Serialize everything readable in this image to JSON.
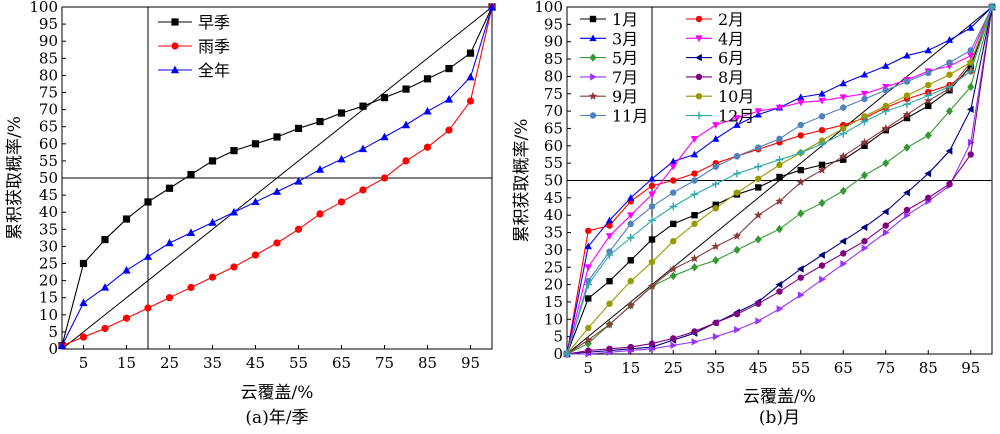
{
  "chart_data": [
    {
      "id": "a",
      "type": "line",
      "caption": "(a)年/季",
      "xlabel": "云覆盖/%",
      "ylabel": "累积获取概率/%",
      "xlim": [
        0,
        100
      ],
      "ylim": [
        0,
        100
      ],
      "xticks": [
        5,
        15,
        25,
        35,
        45,
        55,
        65,
        75,
        85,
        95
      ],
      "yticks": [
        0,
        5,
        10,
        15,
        20,
        25,
        30,
        35,
        40,
        45,
        50,
        55,
        60,
        65,
        70,
        75,
        80,
        85,
        90,
        95,
        100
      ],
      "reference_lines": {
        "diagonal": true,
        "vertical_x": 20,
        "horizontal_y": 50
      },
      "legend": {
        "placement": "top-left",
        "columns": 1
      },
      "series": [
        {
          "name": "早季",
          "color": "#000000",
          "marker": "square",
          "x": [
            0,
            5,
            10,
            15,
            20,
            25,
            30,
            35,
            40,
            45,
            50,
            55,
            60,
            65,
            70,
            75,
            80,
            85,
            90,
            95,
            100
          ],
          "y": [
            1,
            25,
            32,
            38,
            43,
            47,
            51,
            55,
            58,
            60,
            62,
            64.5,
            66.5,
            69,
            71,
            73.5,
            76,
            79,
            82,
            86.5,
            100
          ]
        },
        {
          "name": "雨季",
          "color": "#ff0000",
          "marker": "circle",
          "x": [
            0,
            5,
            10,
            15,
            20,
            25,
            30,
            35,
            40,
            45,
            50,
            55,
            60,
            65,
            70,
            75,
            80,
            85,
            90,
            95,
            100
          ],
          "y": [
            1,
            3.5,
            6,
            9,
            12,
            15,
            18,
            21,
            24,
            27.5,
            31,
            35,
            39.5,
            43,
            46.5,
            50,
            55,
            59,
            64,
            72.5,
            100
          ]
        },
        {
          "name": "全年",
          "color": "#0000ff",
          "marker": "triangle",
          "x": [
            0,
            5,
            10,
            15,
            20,
            25,
            30,
            35,
            40,
            45,
            50,
            55,
            60,
            65,
            70,
            75,
            80,
            85,
            90,
            95,
            100
          ],
          "y": [
            1,
            13.5,
            18,
            23,
            27,
            31,
            34,
            37,
            40,
            43,
            46,
            49,
            52.5,
            55.5,
            58.5,
            62,
            65.5,
            69.5,
            73,
            79.5,
            100
          ]
        }
      ]
    },
    {
      "id": "b",
      "type": "line",
      "caption": "(b)月",
      "xlabel": "云覆盖/%",
      "ylabel": "累积获取概率/%",
      "xlim": [
        0,
        100
      ],
      "ylim": [
        0,
        100
      ],
      "xticks": [
        5,
        15,
        25,
        35,
        45,
        55,
        65,
        75,
        85,
        95
      ],
      "yticks": [
        0,
        5,
        10,
        15,
        20,
        25,
        30,
        35,
        40,
        45,
        50,
        55,
        60,
        65,
        70,
        75,
        80,
        85,
        90,
        95,
        100
      ],
      "reference_lines": {
        "diagonal": true,
        "vertical_x": 20,
        "horizontal_y": 50
      },
      "legend": {
        "placement": "top-left",
        "columns": 2
      },
      "series": [
        {
          "name": "1月",
          "color": "#000000",
          "marker": "square",
          "x": [
            0,
            5,
            10,
            15,
            20,
            25,
            30,
            35,
            40,
            45,
            50,
            55,
            60,
            65,
            70,
            75,
            80,
            85,
            90,
            95,
            100
          ],
          "y": [
            0,
            16,
            21,
            27,
            33,
            37.5,
            40,
            43,
            46,
            48,
            51,
            53,
            54.5,
            56,
            60,
            64.5,
            68,
            71.5,
            76,
            83,
            100
          ]
        },
        {
          "name": "2月",
          "color": "#ff0000",
          "marker": "circle",
          "x": [
            0,
            5,
            10,
            15,
            20,
            25,
            30,
            35,
            40,
            45,
            50,
            55,
            60,
            65,
            70,
            75,
            80,
            85,
            90,
            95,
            100
          ],
          "y": [
            0,
            35.5,
            37,
            44,
            48.5,
            50,
            52,
            55,
            57,
            59,
            61,
            63,
            64.5,
            66,
            68,
            71,
            73.5,
            75.5,
            77.5,
            81.5,
            100
          ]
        },
        {
          "name": "3月",
          "color": "#0000ff",
          "marker": "triangle",
          "x": [
            0,
            5,
            10,
            15,
            20,
            25,
            30,
            35,
            40,
            45,
            50,
            55,
            60,
            65,
            70,
            75,
            80,
            85,
            90,
            95,
            100
          ],
          "y": [
            0,
            31,
            38.5,
            45,
            50.5,
            55.5,
            57.5,
            62,
            66,
            69,
            71,
            74,
            75,
            78,
            80.5,
            83,
            86,
            87.5,
            90.5,
            94,
            100
          ]
        },
        {
          "name": "4月",
          "color": "#ff00ff",
          "marker": "triangle-down",
          "x": [
            0,
            5,
            10,
            15,
            20,
            25,
            30,
            35,
            40,
            45,
            50,
            55,
            60,
            65,
            70,
            75,
            80,
            85,
            90,
            95,
            100
          ],
          "y": [
            0,
            25,
            34,
            40,
            46,
            54,
            62,
            66,
            68,
            70,
            71,
            72.5,
            73,
            74,
            75,
            77,
            79,
            81.5,
            83,
            86,
            100
          ]
        },
        {
          "name": "5月",
          "color": "#339933",
          "marker": "diamond",
          "x": [
            0,
            5,
            10,
            15,
            20,
            25,
            30,
            35,
            40,
            45,
            50,
            55,
            60,
            65,
            70,
            75,
            80,
            85,
            90,
            95,
            100
          ],
          "y": [
            0,
            3,
            8.5,
            14,
            19.5,
            22.5,
            25,
            27,
            30,
            33,
            36,
            40.5,
            43.5,
            47,
            51.5,
            55,
            59.5,
            63,
            70,
            77,
            100
          ]
        },
        {
          "name": "6月",
          "color": "#000080",
          "marker": "triangle-left",
          "x": [
            0,
            5,
            10,
            15,
            20,
            25,
            30,
            35,
            40,
            45,
            50,
            55,
            60,
            65,
            70,
            75,
            80,
            85,
            90,
            95,
            100
          ],
          "y": [
            0,
            0.5,
            1,
            1.5,
            2,
            4,
            6,
            9,
            12,
            15,
            20,
            24.5,
            28.5,
            32.5,
            36.5,
            41,
            46.5,
            52,
            58.5,
            70.5,
            100
          ]
        },
        {
          "name": "7月",
          "color": "#9933ff",
          "marker": "triangle-right",
          "x": [
            0,
            5,
            10,
            15,
            20,
            25,
            30,
            35,
            40,
            45,
            50,
            55,
            60,
            65,
            70,
            75,
            80,
            85,
            90,
            95,
            100
          ],
          "y": [
            0,
            0,
            0.5,
            1,
            1.5,
            2.5,
            3.5,
            5,
            7,
            9.5,
            13,
            17,
            21.5,
            26,
            30.5,
            35,
            40,
            44,
            48.5,
            61,
            100
          ]
        },
        {
          "name": "8月",
          "color": "#800080",
          "marker": "circle",
          "x": [
            0,
            5,
            10,
            15,
            20,
            25,
            30,
            35,
            40,
            45,
            50,
            55,
            60,
            65,
            70,
            75,
            80,
            85,
            90,
            95,
            100
          ],
          "y": [
            0,
            1,
            1.5,
            2,
            3,
            4.5,
            6.5,
            9,
            11.5,
            14.5,
            18,
            22,
            25.5,
            29,
            32.5,
            37,
            41.5,
            45,
            49,
            57.5,
            100
          ]
        },
        {
          "name": "9月",
          "color": "#8b3a3a",
          "marker": "star",
          "x": [
            0,
            5,
            10,
            15,
            20,
            25,
            30,
            35,
            40,
            45,
            50,
            55,
            60,
            65,
            70,
            75,
            80,
            85,
            90,
            95,
            100
          ],
          "y": [
            0,
            4,
            8.5,
            14,
            19.5,
            24.5,
            27.5,
            31,
            34,
            40,
            44,
            49.5,
            53,
            57,
            61,
            65,
            69,
            73,
            76.5,
            84,
            100
          ]
        },
        {
          "name": "10月",
          "color": "#999900",
          "marker": "circle",
          "x": [
            0,
            5,
            10,
            15,
            20,
            25,
            30,
            35,
            40,
            45,
            50,
            55,
            60,
            65,
            70,
            75,
            80,
            85,
            90,
            95,
            100
          ],
          "y": [
            0,
            7.5,
            14.5,
            21,
            26.5,
            32.5,
            37.5,
            42,
            46.5,
            50.5,
            54.5,
            58,
            61.5,
            65,
            68.5,
            71.5,
            74.5,
            77.5,
            80.5,
            84,
            100
          ]
        },
        {
          "name": "11月",
          "color": "#4f81bd",
          "marker": "circle",
          "x": [
            0,
            5,
            10,
            15,
            20,
            25,
            30,
            35,
            40,
            45,
            50,
            55,
            60,
            65,
            70,
            75,
            80,
            85,
            90,
            95,
            100
          ],
          "y": [
            0,
            21,
            29.5,
            37.5,
            42.5,
            46.5,
            50,
            54,
            57,
            59.5,
            62,
            66,
            68.5,
            71,
            73.5,
            76,
            78.5,
            81,
            84,
            87.5,
            100
          ]
        },
        {
          "name": "12月",
          "color": "#2eaaaa",
          "marker": "plus",
          "x": [
            0,
            5,
            10,
            15,
            20,
            25,
            30,
            35,
            40,
            45,
            50,
            55,
            60,
            65,
            70,
            75,
            80,
            85,
            90,
            95,
            100
          ],
          "y": [
            0,
            20,
            28.5,
            33.5,
            38.5,
            42.5,
            46,
            49,
            52,
            54,
            56,
            58,
            60.5,
            63.5,
            67,
            70,
            72,
            74.5,
            77,
            81.5,
            100
          ]
        }
      ]
    }
  ]
}
